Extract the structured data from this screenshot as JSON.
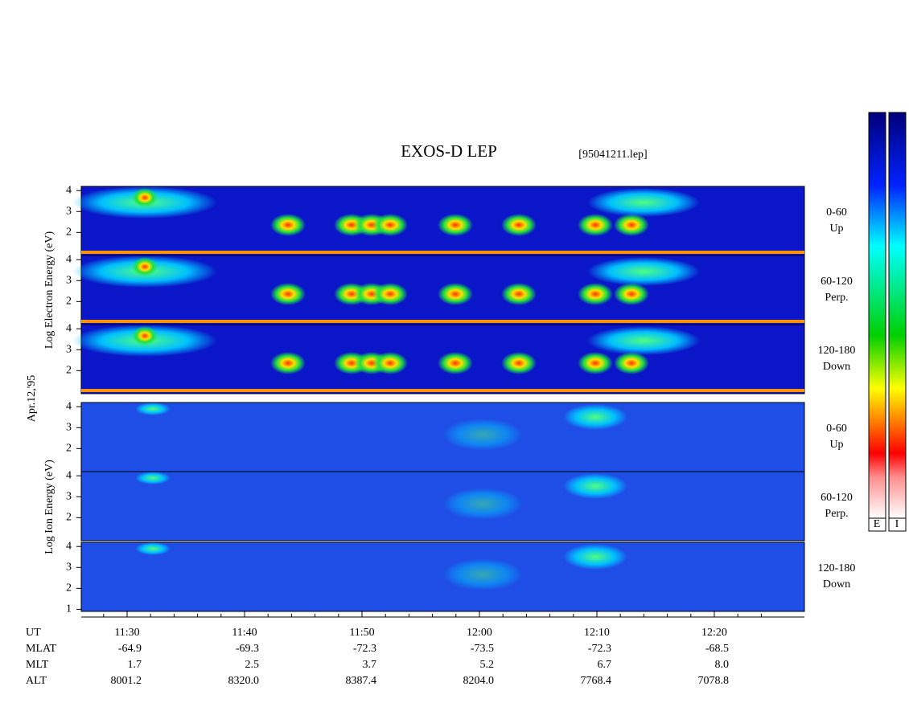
{
  "title": "EXOS-D LEP",
  "file": "[95041211.lep]",
  "date": "Apr.12,'95",
  "groups": [
    {
      "ylabel": "Log  Electron  Energy (eV)",
      "ylim": [
        0.9,
        4.2
      ],
      "panels": [
        {
          "yticks": [
            2,
            3,
            4
          ],
          "labels": [
            "0-60",
            "Up"
          ]
        },
        {
          "yticks": [
            2,
            3,
            4
          ],
          "labels": [
            "60-120",
            "Perp."
          ]
        },
        {
          "yticks": [
            2,
            3,
            4
          ],
          "labels": [
            "120-180",
            "Down"
          ]
        }
      ]
    },
    {
      "ylabel": "Log  Ion  Energy (eV)",
      "ylim": [
        0.9,
        4.2
      ],
      "panels": [
        {
          "yticks": [
            2,
            3,
            4
          ],
          "labels": [
            "0-60",
            "Up"
          ]
        },
        {
          "yticks": [
            2,
            3,
            4
          ],
          "labels": [
            "60-120",
            "Perp."
          ]
        },
        {
          "yticks": [
            1,
            2,
            3,
            4
          ],
          "labels": [
            "120-180",
            "Down"
          ]
        }
      ]
    }
  ],
  "colorbar": [
    "E",
    "I"
  ],
  "ephemeris": [
    {
      "name": "UT",
      "values": [
        "11:30",
        "11:40",
        "11:50",
        "12:00",
        "12:10",
        "12:20"
      ]
    },
    {
      "name": "MLAT",
      "values": [
        "-64.9",
        "-69.3",
        "-72.3",
        "-73.5",
        "-72.3",
        "-68.5"
      ]
    },
    {
      "name": "MLT",
      "values": [
        "1.7",
        "2.5",
        "3.7",
        "5.2",
        "6.7",
        "8.0"
      ]
    },
    {
      "name": "ALT",
      "values": [
        "8001.2",
        "8320.0",
        "8387.4",
        "8204.0",
        "7768.4",
        "7078.8"
      ]
    }
  ]
}
